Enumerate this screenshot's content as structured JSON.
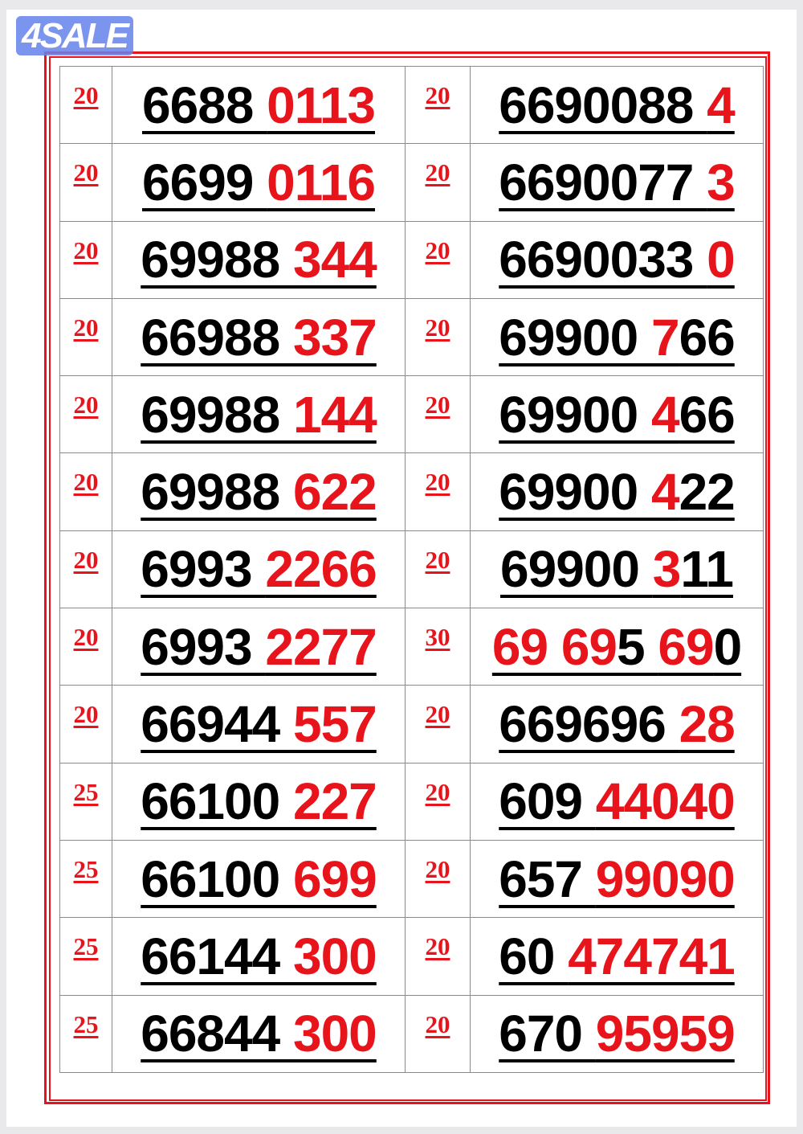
{
  "logo": {
    "text": "4SALE",
    "color": "#6482eb"
  },
  "colors": {
    "accent": "#e8141b",
    "text": "#000000"
  },
  "rows": [
    {
      "left": {
        "price": "20",
        "segments": [
          {
            "text": "6688 ",
            "red": false
          },
          {
            "text": "0113",
            "red": true
          }
        ]
      },
      "right": {
        "price": "20",
        "segments": [
          {
            "text": "6690088 ",
            "red": false
          },
          {
            "text": "4",
            "red": true
          }
        ]
      }
    },
    {
      "left": {
        "price": "20",
        "segments": [
          {
            "text": "6699 ",
            "red": false
          },
          {
            "text": "0116",
            "red": true
          }
        ]
      },
      "right": {
        "price": "20",
        "segments": [
          {
            "text": "6690077 ",
            "red": false
          },
          {
            "text": "3",
            "red": true
          }
        ]
      }
    },
    {
      "left": {
        "price": "20",
        "segments": [
          {
            "text": "69988 ",
            "red": false
          },
          {
            "text": "344",
            "red": true
          }
        ]
      },
      "right": {
        "price": "20",
        "segments": [
          {
            "text": "6690033 ",
            "red": false
          },
          {
            "text": "0",
            "red": true
          }
        ]
      }
    },
    {
      "left": {
        "price": "20",
        "segments": [
          {
            "text": "66988 ",
            "red": false
          },
          {
            "text": "337",
            "red": true
          }
        ]
      },
      "right": {
        "price": "20",
        "segments": [
          {
            "text": "69900 ",
            "red": false
          },
          {
            "text": "7",
            "red": true
          },
          {
            "text": "66",
            "red": false
          }
        ]
      }
    },
    {
      "left": {
        "price": "20",
        "segments": [
          {
            "text": "69988 ",
            "red": false
          },
          {
            "text": "144",
            "red": true
          }
        ]
      },
      "right": {
        "price": "20",
        "segments": [
          {
            "text": "69900 ",
            "red": false
          },
          {
            "text": "4",
            "red": true
          },
          {
            "text": "66",
            "red": false
          }
        ]
      }
    },
    {
      "left": {
        "price": "20",
        "segments": [
          {
            "text": "69988 ",
            "red": false
          },
          {
            "text": "622",
            "red": true
          }
        ]
      },
      "right": {
        "price": "20",
        "segments": [
          {
            "text": "69900 ",
            "red": false
          },
          {
            "text": "4",
            "red": true
          },
          {
            "text": "22",
            "red": false
          }
        ]
      }
    },
    {
      "left": {
        "price": "20",
        "segments": [
          {
            "text": "6993 ",
            "red": false
          },
          {
            "text": "2266",
            "red": true
          }
        ]
      },
      "right": {
        "price": "20",
        "segments": [
          {
            "text": "69900 ",
            "red": false
          },
          {
            "text": "3",
            "red": true
          },
          {
            "text": "11",
            "red": false
          }
        ]
      }
    },
    {
      "left": {
        "price": "20",
        "segments": [
          {
            "text": "6993 ",
            "red": false
          },
          {
            "text": "2277",
            "red": true
          }
        ]
      },
      "right": {
        "price": "30",
        "segments": [
          {
            "text": "69 69",
            "red": true
          },
          {
            "text": "5 ",
            "red": false
          },
          {
            "text": "69",
            "red": true
          },
          {
            "text": "0",
            "red": false
          }
        ]
      }
    },
    {
      "left": {
        "price": "20",
        "segments": [
          {
            "text": "66944 ",
            "red": false
          },
          {
            "text": "557",
            "red": true
          }
        ]
      },
      "right": {
        "price": "20",
        "segments": [
          {
            "text": "669696 ",
            "red": false
          },
          {
            "text": "28",
            "red": true
          }
        ]
      }
    },
    {
      "left": {
        "price": "25",
        "segments": [
          {
            "text": "66100 ",
            "red": false
          },
          {
            "text": "227",
            "red": true
          }
        ]
      },
      "right": {
        "price": "20",
        "segments": [
          {
            "text": "609 ",
            "red": false
          },
          {
            "text": "44040",
            "red": true
          }
        ]
      }
    },
    {
      "left": {
        "price": "25",
        "segments": [
          {
            "text": "66100 ",
            "red": false
          },
          {
            "text": "699",
            "red": true
          }
        ]
      },
      "right": {
        "price": "20",
        "segments": [
          {
            "text": "657 ",
            "red": false
          },
          {
            "text": "99090",
            "red": true
          }
        ]
      }
    },
    {
      "left": {
        "price": "25",
        "segments": [
          {
            "text": "66144 ",
            "red": false
          },
          {
            "text": "300",
            "red": true
          }
        ]
      },
      "right": {
        "price": "20",
        "segments": [
          {
            "text": "60 ",
            "red": false
          },
          {
            "text": "474741",
            "red": true
          }
        ]
      }
    },
    {
      "left": {
        "price": "25",
        "segments": [
          {
            "text": "66844 ",
            "red": false
          },
          {
            "text": "300",
            "red": true
          }
        ]
      },
      "right": {
        "price": "20",
        "segments": [
          {
            "text": "670 ",
            "red": false
          },
          {
            "text": "95959",
            "red": true
          }
        ]
      }
    }
  ]
}
